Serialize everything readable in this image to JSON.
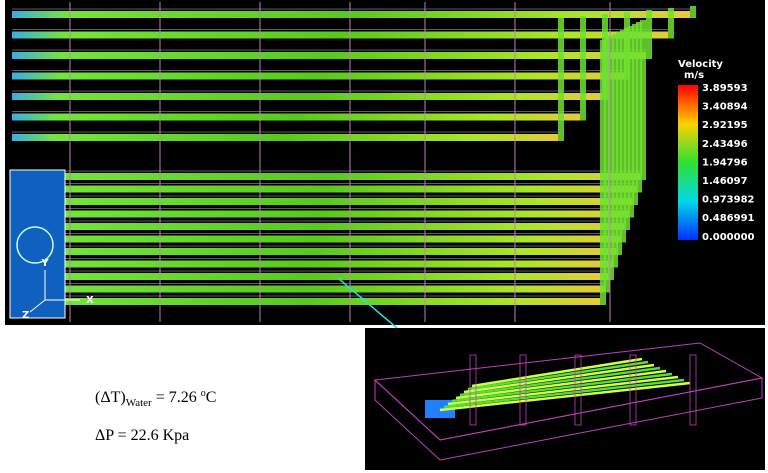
{
  "colorbar": {
    "title": "Velocity",
    "unit": "m/s",
    "labels": [
      "3.89593",
      "3.40894",
      "2.92195",
      "2.43496",
      "1.94796",
      "1.46097",
      "0.973982",
      "0.486991",
      "0.000000"
    ]
  },
  "axes_labels": {
    "y": "Y",
    "x": "X",
    "z": "Z"
  },
  "annotations": {
    "delta_t": {
      "open": "(ΔT)",
      "sub": "Water",
      "mid": " = 7.26 ",
      "sup": "o",
      "unit": "C"
    },
    "delta_p": "ΔP = 22.6 Kpa"
  }
}
